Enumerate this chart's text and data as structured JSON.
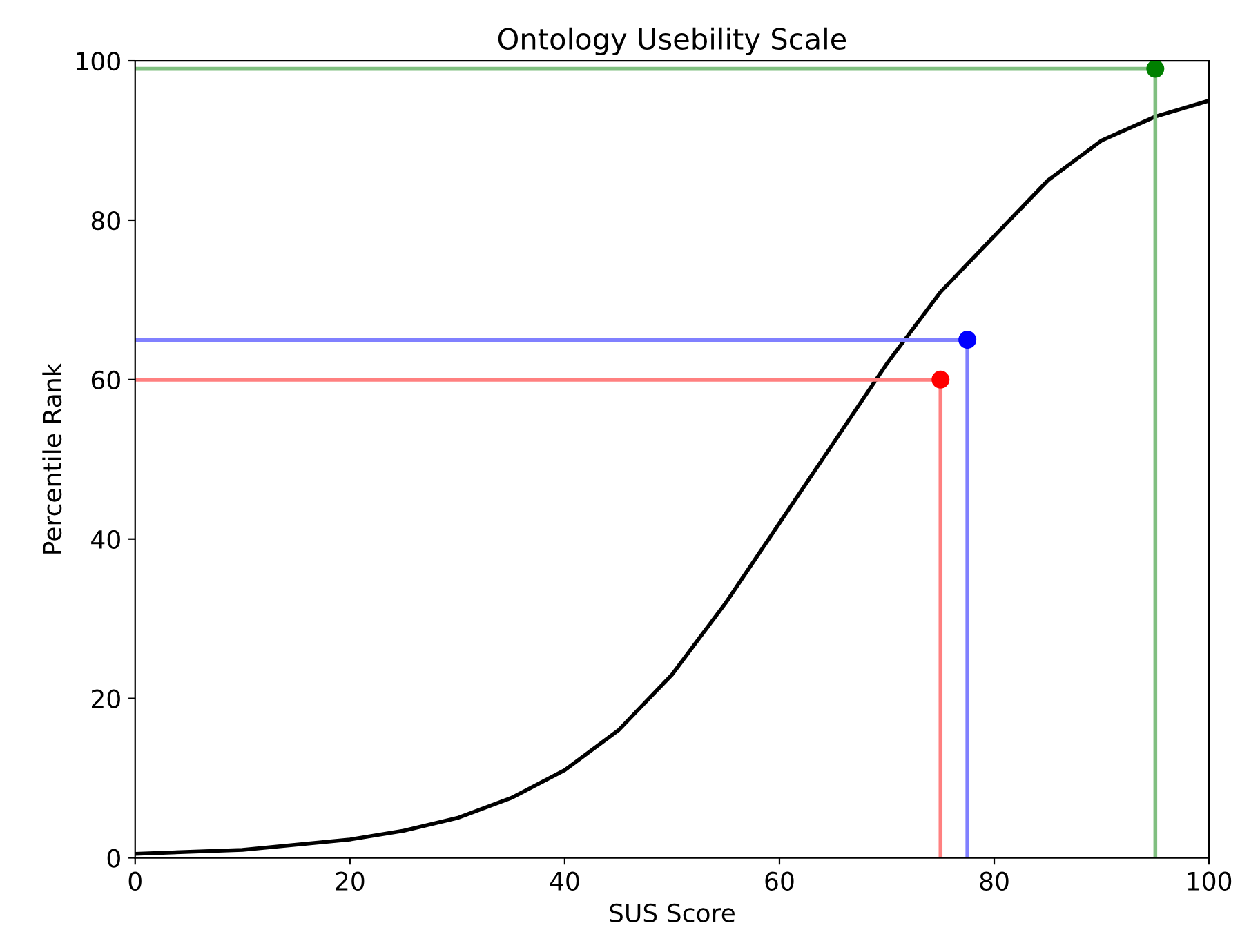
{
  "chart_data": {
    "type": "line",
    "title": "Ontology Usebility Scale",
    "xlabel": "SUS Score",
    "ylabel": "Percentile Rank",
    "xlim": [
      0,
      100
    ],
    "ylim": [
      0,
      100
    ],
    "xticks": [
      0,
      20,
      40,
      60,
      80,
      100
    ],
    "yticks": [
      0,
      20,
      40,
      60,
      80,
      100
    ],
    "grid": false,
    "legend": false,
    "series": [
      {
        "color": "#000000",
        "marker": "none",
        "x": [
          0,
          10,
          20,
          25,
          30,
          35,
          40,
          45,
          50,
          55,
          60,
          65,
          70,
          75,
          80,
          85,
          90,
          95,
          100
        ],
        "values": [
          0.5,
          1.0,
          2.3,
          3.4,
          5.0,
          7.5,
          11,
          16,
          23,
          32,
          42,
          52,
          62,
          71,
          78,
          85,
          90,
          93,
          95
        ]
      },
      {
        "color": "#ff8080",
        "marker": "none",
        "x": [
          0,
          75,
          75
        ],
        "values": [
          60,
          60,
          0
        ]
      },
      {
        "color": "#8080ff",
        "marker": "none",
        "x": [
          0,
          77.5,
          77.5
        ],
        "values": [
          65,
          65,
          0
        ]
      },
      {
        "color": "#80bf80",
        "marker": "none",
        "x": [
          0,
          95,
          95
        ],
        "values": [
          99,
          99,
          0
        ]
      },
      {
        "type": "scatter",
        "color": "#ff0000",
        "marker": "circle",
        "x": [
          75
        ],
        "values": [
          60
        ]
      },
      {
        "type": "scatter",
        "color": "#0000ff",
        "marker": "circle",
        "x": [
          77.5
        ],
        "values": [
          65
        ]
      },
      {
        "type": "scatter",
        "color": "#008000",
        "marker": "circle",
        "x": [
          95
        ],
        "values": [
          99
        ]
      }
    ]
  }
}
